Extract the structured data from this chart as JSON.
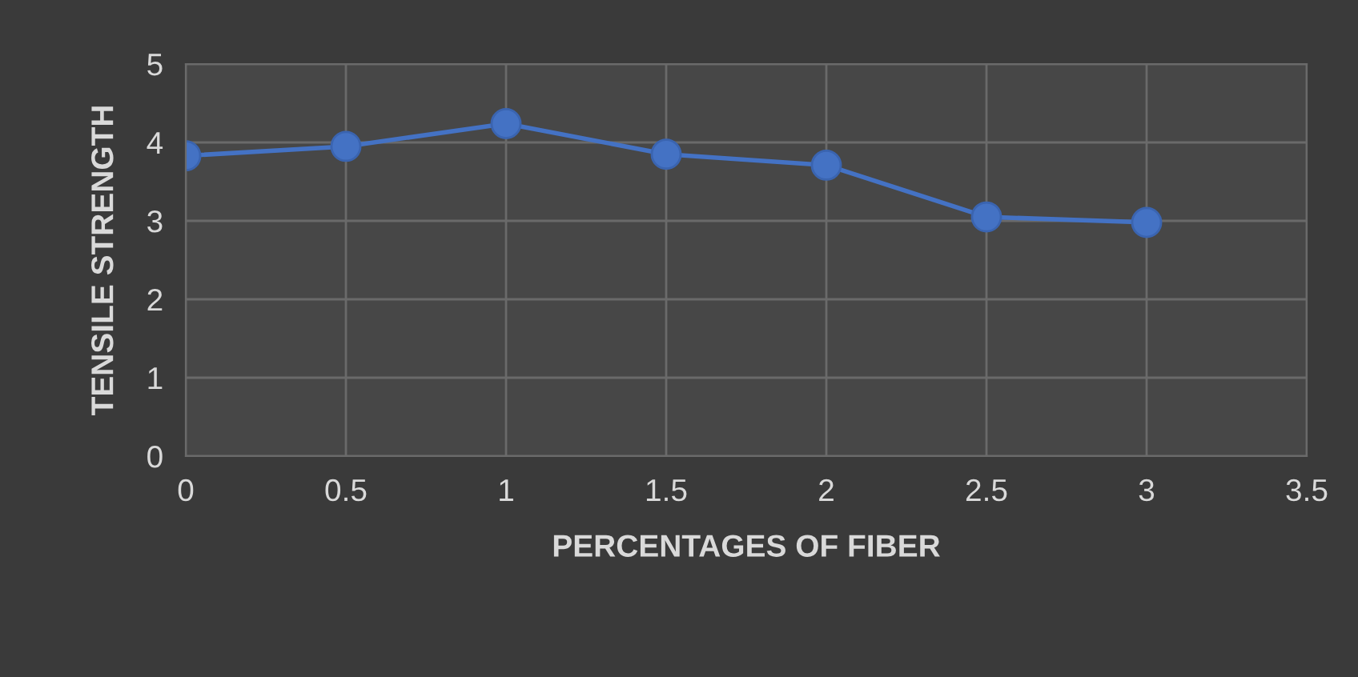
{
  "chart_data": {
    "type": "line",
    "xlabel": "PERCENTAGES OF FIBER",
    "ylabel": "TENSILE STRENGTH",
    "x": [
      0,
      0.5,
      1,
      1.5,
      2,
      2.5,
      3
    ],
    "series": [
      {
        "color": "#4472c4",
        "values": [
          3.83,
          3.95,
          4.24,
          3.85,
          3.71,
          3.05,
          2.98
        ]
      }
    ],
    "xlim": [
      0,
      3.5
    ],
    "xticks": [
      0,
      0.5,
      1,
      1.5,
      2,
      2.5,
      3,
      3.5
    ],
    "ylim": [
      0,
      5
    ],
    "yticks": [
      0,
      1,
      2,
      3,
      4,
      5
    ],
    "grid": true,
    "marker": "circle",
    "line_style": "solid"
  }
}
